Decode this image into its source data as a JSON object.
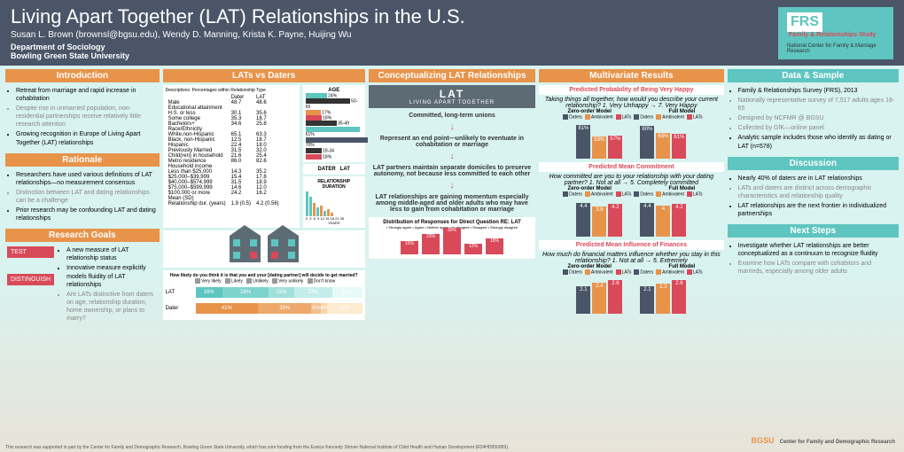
{
  "header": {
    "title": "Living Apart Together (LAT) Relationships in the U.S.",
    "authors": "Susan L. Brown (brownsl@bgsu.edu), Wendy D. Manning, Krista K. Payne, Huijing Wu",
    "dept": "Department of Sociology",
    "uni": "Bowling Green State University",
    "logo": {
      "frs": "FRS",
      "sub": "Family &\nRelationships\nStudy",
      "line": "National Center for Family & Marriage Research"
    }
  },
  "intro": {
    "h": "Introduction",
    "items": [
      "Retreat from marriage and rapid increase in cohabitation",
      "Despite rise in unmarried population, non-residential partnerships receive relatively little research attention",
      "Growing recognition in Europe of Living Apart Together (LAT) relationships"
    ]
  },
  "rationale": {
    "h": "Rationale",
    "items": [
      "Researchers have used various definitions of LAT relationships—no measurement consensus",
      "Distinction between LAT and dating relationships can be a challenge",
      "Prior research may be confounding LAT and dating relationships"
    ]
  },
  "goals": {
    "h": "Research Goals",
    "test": "TEST",
    "dist": "DISTINGUISH",
    "items": [
      "A new measure of LAT relationship status",
      "Innovative measure explicitly models fluidity of LAT relationships",
      "Are LATs distinctive from daters on age, relationship duration, home ownership, or plans to marry?"
    ]
  },
  "lvd": {
    "h": "LATs vs Daters",
    "desc": "Descriptives: Percentages within Relationship Type",
    "rows": [
      [
        "",
        "Dater",
        "LAT"
      ],
      [
        "Male",
        "48.7",
        "48.6"
      ],
      [
        "Educational attainment",
        "",
        ""
      ],
      [
        "H.S. or less",
        "30.1",
        "35.6"
      ],
      [
        "Some college",
        "35.3",
        "18.7"
      ],
      [
        "Bachelors+",
        "34.6",
        "25.8"
      ],
      [
        "Race/Ethnicity",
        "",
        ""
      ],
      [
        "White,non-Hispanic",
        "65.1",
        "63.3"
      ],
      [
        "Black, non-Hispanic",
        "12.5",
        "18.7"
      ],
      [
        "Hispanic",
        "22.4",
        "18.0"
      ],
      [
        "Previously Married",
        "31.5",
        "32.0"
      ],
      [
        "Child(ren) in household",
        "21.6",
        "25.4"
      ],
      [
        "Metro residence",
        "86.0",
        "82.6"
      ],
      [
        "Household income",
        "",
        ""
      ],
      [
        "Less than $25,000",
        "14.3",
        "35.2"
      ],
      [
        "$25,000–$39,999",
        "15.4",
        "17.8"
      ],
      [
        "$40,000–$574,999",
        "31.5",
        "18.9"
      ],
      [
        "$75,000–$599,999",
        "14.6",
        "12.0"
      ],
      [
        "$100,000 or more",
        "24.2",
        "16.2"
      ],
      [
        "Mean (SD)",
        "",
        ""
      ],
      [
        "Relationship dur. (years)",
        "1.9 (0.5)",
        "4.2 (0.56)"
      ]
    ],
    "age": {
      "label": "AGE",
      "b": [
        {
          "l": "24%",
          "c": "#5ec5c0"
        },
        {
          "l": "50-65",
          "c": "#333"
        },
        {
          "l": "17%",
          "c": "#e8934a"
        },
        {
          "l": "18%",
          "c": "#d84a5a"
        },
        {
          "l": "35-49",
          "c": "#333"
        },
        {
          "l": "61%",
          "c": "#5ec5c0"
        },
        {
          "l": "70%",
          "c": "#4a5568"
        },
        {
          "l": "18-34",
          "c": "#333"
        },
        {
          "l": "18%",
          "c": "#d84a5a"
        }
      ]
    },
    "dur": {
      "label": "RELATIONSHIP DURATION",
      "xl": "YEARS",
      "legend": [
        "Dater",
        "LAT"
      ]
    },
    "marry": {
      "q": "How likely do you think it is that you and your [dating partner] will decide to get married?",
      "opts": [
        "Very likely",
        "Likely",
        "Unlikely",
        "Very unlikely",
        "Don't know"
      ],
      "lat": {
        "l": "LAT",
        "v": [
          16,
          28,
          15,
          23,
          18
        ],
        "c": [
          "#5ec5c0",
          "#7dd3ce",
          "#a0e0db",
          "#c3ede9",
          "#e6faf7"
        ]
      },
      "dater": {
        "l": "Dater",
        "v": [
          41,
          35,
          6,
          4,
          23
        ],
        "c": [
          "#e8934a",
          "#eda96b",
          "#f2bf8c",
          "#f7d5ad",
          "#fcebce"
        ]
      }
    }
  },
  "concept": {
    "h": "Conceptualizing LAT Relationships",
    "banner": {
      "t": "LAT",
      "s": "LIVING APART TOGETHER"
    },
    "lines": [
      "Committed, long-term unions",
      "Represent an end point—unlikely to eventuate in cohabitation or marriage",
      "LAT partners maintain separate domiciles to preserve autonomy, not because less committed to each other",
      "LAT relationships are gaining momentum especially among middle-aged and older adults who may have less to gain from cohabitation or marriage"
    ],
    "dist": {
      "h": "Distribution of Responses for Direct Question RE: LAT",
      "leg": [
        "Strongly agree",
        "Agree",
        "Neither agree nor disagree",
        "Disagree",
        "Strongly disagree"
      ],
      "v": [
        15,
        23,
        30,
        12,
        18
      ]
    }
  },
  "multi": {
    "h": "Multivariate Results",
    "sections": [
      {
        "pill": "Predicted Probability of Being Very Happy",
        "q": "Taking things all together, how would you describe your current relationship?",
        "scale": "1. Very Unhappy → 7. Very Happy",
        "zero": [
          81,
          53,
          57
        ],
        "full": [
          80,
          63,
          61
        ]
      },
      {
        "pill": "Predicted Mean Commitment",
        "q": "How committed are you to your relationship with your dating partner?",
        "scale": "1. Not at all → 5. Completely committed",
        "zero": [
          4.4,
          3.9,
          4.2
        ],
        "full": [
          4.4,
          4.0,
          4.2
        ]
      },
      {
        "pill": "Predicted Mean Influence of Finances",
        "q": "How much do financial matters influence whether you stay in this relationship?",
        "scale": "1. Not at all → 5. Extremely",
        "zero": [
          2.1,
          2.4,
          2.6
        ],
        "full": [
          2.1,
          2.3,
          2.6
        ]
      }
    ],
    "legend": [
      "Daters",
      "Ambivalent",
      "LATs"
    ],
    "colors": [
      "#4a5568",
      "#e8934a",
      "#d84a5a"
    ],
    "models": [
      "Zero-order Model",
      "Full Model"
    ]
  },
  "data": {
    "h": "Data & Sample",
    "items": [
      "Family & Relationships Survey (FRS), 2013",
      "Nationally representative survey of 7,517 adults ages 18-65",
      "Designed by NCFMR @ BGSU",
      "Collected by GfK—online panel",
      "Analytic sample includes those who identify as dating or LAT (n=578)"
    ]
  },
  "disc": {
    "h": "Discussion",
    "items": [
      "Nearly 40% of daters are in LAT relationships",
      "LATs and daters are distinct across demographic characteristics and relationship quality",
      "LAT relationships are the next frontier in individualized partnerships"
    ]
  },
  "next": {
    "h": "Next Steps",
    "items": [
      "Investigate whether LAT relationships are better conceptualized as a continuum to recognize fluidity",
      "Examine how LATs compare with cohabitors and marrieds, especially among older adults"
    ]
  },
  "footer": "This research was supported in part by the Center for Family and Demographic Research, Bowling Green State University, which has core funding from the Eunice Kennedy Shriver National Institute of Child Health and Human Development (R24HD050959).",
  "bgsu": {
    "b": "BGSU",
    "c": "Center for Family and Demographic Research"
  }
}
